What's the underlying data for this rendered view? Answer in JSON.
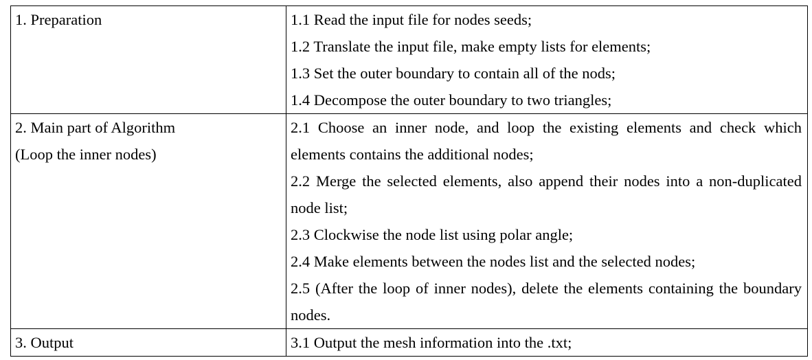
{
  "table": {
    "rows": [
      {
        "label": [
          "1. Preparation"
        ],
        "steps": [
          "1.1 Read the input file for nodes seeds;",
          "1.2 Translate the input file, make empty lists for elements;",
          "1.3 Set the outer boundary to contain all of the nods;",
          "1.4 Decompose the outer boundary to two triangles;"
        ]
      },
      {
        "label": [
          "2. Main part of Algorithm",
          "(Loop the inner nodes)"
        ],
        "steps": [
          "2.1 Choose an inner node, and loop the existing elements and check which elements contains the additional nodes;",
          "2.2 Merge the selected elements, also append their nodes into a non-duplicated node list;",
          "2.3 Clockwise the node list using polar angle;",
          "2.4 Make elements between the nodes list and the selected nodes;",
          "2.5 (After the loop of inner nodes), delete the elements containing the boundary nodes."
        ]
      },
      {
        "label": [
          "3. Output"
        ],
        "steps": [
          "3.1 Output the mesh information into the .txt;"
        ]
      }
    ]
  }
}
